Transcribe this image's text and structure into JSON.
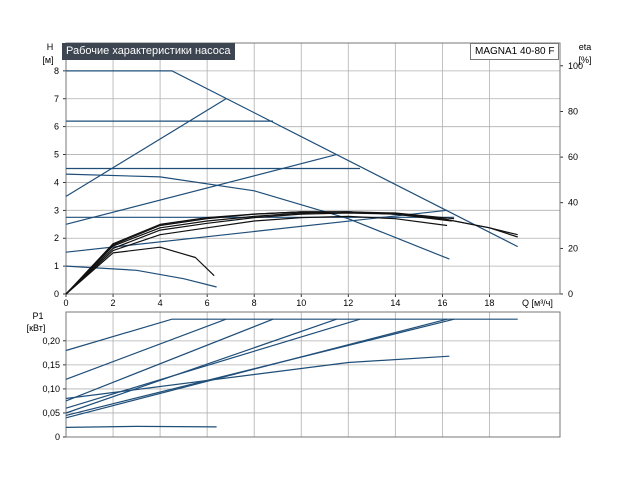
{
  "title": "Рабочие характеристики насоса",
  "model": "MAGNA1 40-80 F",
  "colors": {
    "curve": "#1f4e79",
    "efficiency": "#111111",
    "grid": "#b0b0b0",
    "frame": "#777777"
  },
  "chart_data": [
    {
      "type": "line",
      "panel": "head",
      "ylabel_top": "H",
      "ylabel_unit": "[м]",
      "y2label_top": "eta",
      "y2label_unit": "[%]",
      "xlabel": "Q [м³/ч]",
      "xlim": [
        0,
        21
      ],
      "ylim": [
        0,
        9
      ],
      "y2lim": [
        0,
        110
      ],
      "grid": true,
      "x_ticks": [
        0,
        2,
        4,
        6,
        8,
        10,
        12,
        14,
        16,
        18
      ],
      "y_ticks": [
        0,
        1,
        2,
        3,
        4,
        5,
        6,
        7,
        8
      ],
      "y2_ticks": [
        0,
        20,
        40,
        60,
        80,
        100
      ],
      "x_tick_labels": [
        "0",
        "2",
        "4",
        "6",
        "8",
        "10",
        "12",
        "14",
        "16",
        "18"
      ],
      "y_tick_labels": [
        "0",
        "1",
        "2",
        "3",
        "4",
        "5",
        "6",
        "7",
        "8"
      ],
      "y2_tick_labels": [
        "0",
        "20",
        "40",
        "60",
        "80",
        "100"
      ],
      "head_curves": [
        [
          [
            0,
            8
          ],
          [
            4.5,
            8
          ],
          [
            19.2,
            1.7
          ]
        ],
        [
          [
            0,
            3.5
          ],
          [
            6.8,
            7.0
          ]
        ],
        [
          [
            0,
            6.2
          ],
          [
            8.8,
            6.2
          ]
        ],
        [
          [
            0,
            2.5
          ],
          [
            11.5,
            5.0
          ]
        ],
        [
          [
            0,
            4.5
          ],
          [
            12.5,
            4.5
          ]
        ],
        [
          [
            0,
            1.5
          ],
          [
            16.2,
            3.0
          ]
        ],
        [
          [
            0,
            2.75
          ],
          [
            16.5,
            2.75
          ]
        ],
        [
          [
            0,
            4.3
          ],
          [
            4,
            4.2
          ],
          [
            8,
            3.7
          ],
          [
            12,
            2.7
          ],
          [
            16.3,
            1.25
          ]
        ],
        [
          [
            0,
            1.0
          ],
          [
            3,
            0.85
          ],
          [
            5,
            0.55
          ],
          [
            6.4,
            0.25
          ]
        ]
      ],
      "efficiency_curves": [
        [
          [
            0,
            0
          ],
          [
            2,
            18
          ],
          [
            4,
            20.5
          ],
          [
            5.5,
            16
          ],
          [
            6.3,
            8
          ]
        ],
        [
          [
            0,
            0
          ],
          [
            2,
            19
          ],
          [
            4,
            26
          ],
          [
            6,
            29
          ],
          [
            8,
            32
          ],
          [
            10,
            33.5
          ],
          [
            12,
            34
          ],
          [
            14,
            33
          ],
          [
            16.2,
            30
          ]
        ],
        [
          [
            0,
            0
          ],
          [
            2,
            20
          ],
          [
            4,
            28
          ],
          [
            6,
            31
          ],
          [
            8,
            33.5
          ],
          [
            10,
            35
          ],
          [
            12,
            35.5
          ],
          [
            14,
            35
          ],
          [
            16.4,
            32
          ]
        ],
        [
          [
            0,
            0
          ],
          [
            2,
            21
          ],
          [
            4,
            29
          ],
          [
            6,
            32
          ],
          [
            8,
            34
          ],
          [
            10,
            35.5
          ],
          [
            12,
            36
          ],
          [
            14,
            35.5
          ],
          [
            16.5,
            33
          ]
        ],
        [
          [
            0,
            0
          ],
          [
            2,
            21.5
          ],
          [
            4,
            30
          ],
          [
            6,
            33
          ],
          [
            8,
            35
          ],
          [
            10,
            36
          ],
          [
            12,
            36
          ],
          [
            14,
            35
          ],
          [
            16,
            33
          ],
          [
            18,
            29
          ],
          [
            19.2,
            26
          ]
        ],
        [
          [
            0,
            0
          ],
          [
            2,
            22
          ],
          [
            4,
            30.5
          ],
          [
            6,
            33.5
          ],
          [
            8,
            35
          ],
          [
            10,
            36
          ],
          [
            12,
            36
          ],
          [
            14,
            35
          ],
          [
            16,
            33
          ],
          [
            18,
            29
          ],
          [
            19.2,
            25
          ]
        ]
      ]
    },
    {
      "type": "line",
      "panel": "power",
      "ylabel_top": "P1",
      "ylabel_unit": "[кВт]",
      "xlim": [
        0,
        21
      ],
      "ylim": [
        0,
        0.26
      ],
      "grid": true,
      "x_ticks": [
        0,
        2,
        4,
        6,
        8,
        10,
        12,
        14,
        16,
        18
      ],
      "y_ticks": [
        0,
        0.05,
        0.1,
        0.15,
        0.2
      ],
      "y_tick_labels": [
        "0",
        "0,05",
        "0,10",
        "0,15",
        "0,20"
      ],
      "power_curves": [
        [
          [
            0,
            0.18
          ],
          [
            4.5,
            0.245
          ],
          [
            19.2,
            0.245
          ]
        ],
        [
          [
            0,
            0.12
          ],
          [
            6.8,
            0.245
          ]
        ],
        [
          [
            0,
            0.075
          ],
          [
            8.8,
            0.245
          ]
        ],
        [
          [
            0,
            0.05
          ],
          [
            11.5,
            0.245
          ]
        ],
        [
          [
            0,
            0.06
          ],
          [
            12.5,
            0.245
          ]
        ],
        [
          [
            0,
            0.04
          ],
          [
            16.2,
            0.245
          ]
        ],
        [
          [
            0,
            0.045
          ],
          [
            16.5,
            0.245
          ]
        ],
        [
          [
            0,
            0.08
          ],
          [
            8,
            0.13
          ],
          [
            12,
            0.155
          ],
          [
            16.3,
            0.168
          ]
        ],
        [
          [
            0,
            0.02
          ],
          [
            3,
            0.022
          ],
          [
            6.4,
            0.021
          ]
        ]
      ]
    }
  ]
}
